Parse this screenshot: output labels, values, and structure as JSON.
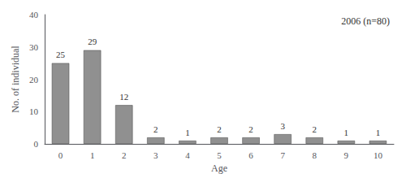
{
  "chart_data": {
    "type": "bar",
    "categories": [
      "0",
      "1",
      "2",
      "3",
      "4",
      "5",
      "6",
      "7",
      "8",
      "9",
      "10"
    ],
    "values": [
      25,
      29,
      12,
      2,
      1,
      2,
      2,
      3,
      2,
      1,
      1
    ],
    "color": "#909090",
    "xlabel": "Age",
    "ylabel": "No. of individual",
    "ylim": [
      0,
      40
    ],
    "yticks": [
      0,
      10,
      20,
      30,
      40
    ],
    "annotation": "2006 (n=80)",
    "data_labels": true,
    "grid": false
  }
}
